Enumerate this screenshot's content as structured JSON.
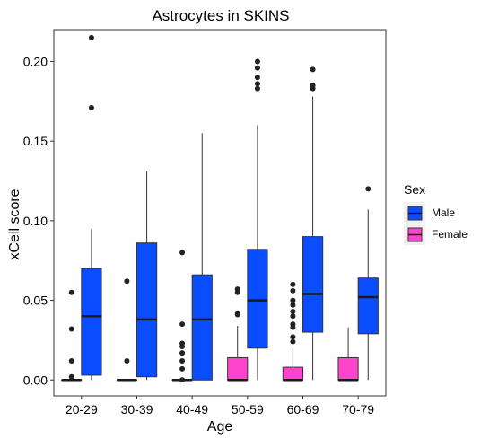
{
  "chart_data": {
    "type": "boxplot",
    "title": "Astrocytes in SKINS",
    "xlabel": "Age",
    "ylabel": "xCell score",
    "categories": [
      "20-29",
      "30-39",
      "40-49",
      "50-59",
      "60-69",
      "70-79"
    ],
    "ylim": [
      -0.01,
      0.22
    ],
    "yticks": [
      0.0,
      0.05,
      0.1,
      0.15,
      0.2
    ],
    "ytick_labels": [
      "0.00",
      "0.05",
      "0.10",
      "0.15",
      "0.20"
    ],
    "grid": false,
    "legend": {
      "title": "Sex",
      "placement": "right"
    },
    "series": [
      {
        "name": "Female",
        "color": "#FF44CC",
        "boxes": [
          {
            "category": "20-29",
            "min": 0.0,
            "q1": 0.0,
            "median": 0.0,
            "q3": 0.0,
            "max": 0.0,
            "outliers": [
              0.002,
              0.012,
              0.032,
              0.055
            ]
          },
          {
            "category": "30-39",
            "min": 0.0,
            "q1": 0.0,
            "median": 0.0,
            "q3": 0.0,
            "max": 0.0,
            "outliers": [
              0.012,
              0.062
            ]
          },
          {
            "category": "40-49",
            "min": 0.0,
            "q1": 0.0,
            "median": 0.0,
            "q3": 0.0,
            "max": 0.0,
            "outliers": [
              0.0,
              0.007,
              0.012,
              0.017,
              0.021,
              0.023,
              0.035,
              0.08
            ]
          },
          {
            "category": "50-59",
            "min": 0.0,
            "q1": 0.0,
            "median": 0.0,
            "q3": 0.014,
            "max": 0.034,
            "outliers": [
              0.041,
              0.042,
              0.055,
              0.057
            ]
          },
          {
            "category": "60-69",
            "min": 0.0,
            "q1": 0.0,
            "median": 0.0,
            "q3": 0.008,
            "max": 0.02,
            "outliers": [
              0.024,
              0.027,
              0.033,
              0.035,
              0.04,
              0.043,
              0.047,
              0.05,
              0.056,
              0.06
            ]
          },
          {
            "category": "70-79",
            "min": 0.0,
            "q1": 0.0,
            "median": 0.0,
            "q3": 0.014,
            "max": 0.033,
            "outliers": []
          }
        ]
      },
      {
        "name": "Male",
        "color": "#0A4DFF",
        "boxes": [
          {
            "category": "20-29",
            "min": 0.0,
            "q1": 0.003,
            "median": 0.04,
            "q3": 0.07,
            "max": 0.095,
            "outliers": [
              0.171,
              0.215
            ]
          },
          {
            "category": "30-39",
            "min": 0.0,
            "q1": 0.002,
            "median": 0.038,
            "q3": 0.086,
            "max": 0.131,
            "outliers": []
          },
          {
            "category": "40-49",
            "min": 0.0,
            "q1": 0.0,
            "median": 0.038,
            "q3": 0.066,
            "max": 0.155,
            "outliers": []
          },
          {
            "category": "50-59",
            "min": 0.0,
            "q1": 0.02,
            "median": 0.05,
            "q3": 0.082,
            "max": 0.16,
            "outliers": [
              0.183,
              0.186,
              0.19,
              0.196,
              0.2
            ]
          },
          {
            "category": "60-69",
            "min": 0.0,
            "q1": 0.03,
            "median": 0.054,
            "q3": 0.09,
            "max": 0.178,
            "outliers": [
              0.183,
              0.185,
              0.195
            ]
          },
          {
            "category": "70-79",
            "min": 0.0,
            "q1": 0.029,
            "median": 0.052,
            "q3": 0.064,
            "max": 0.107,
            "outliers": [
              0.12
            ]
          }
        ]
      }
    ]
  }
}
